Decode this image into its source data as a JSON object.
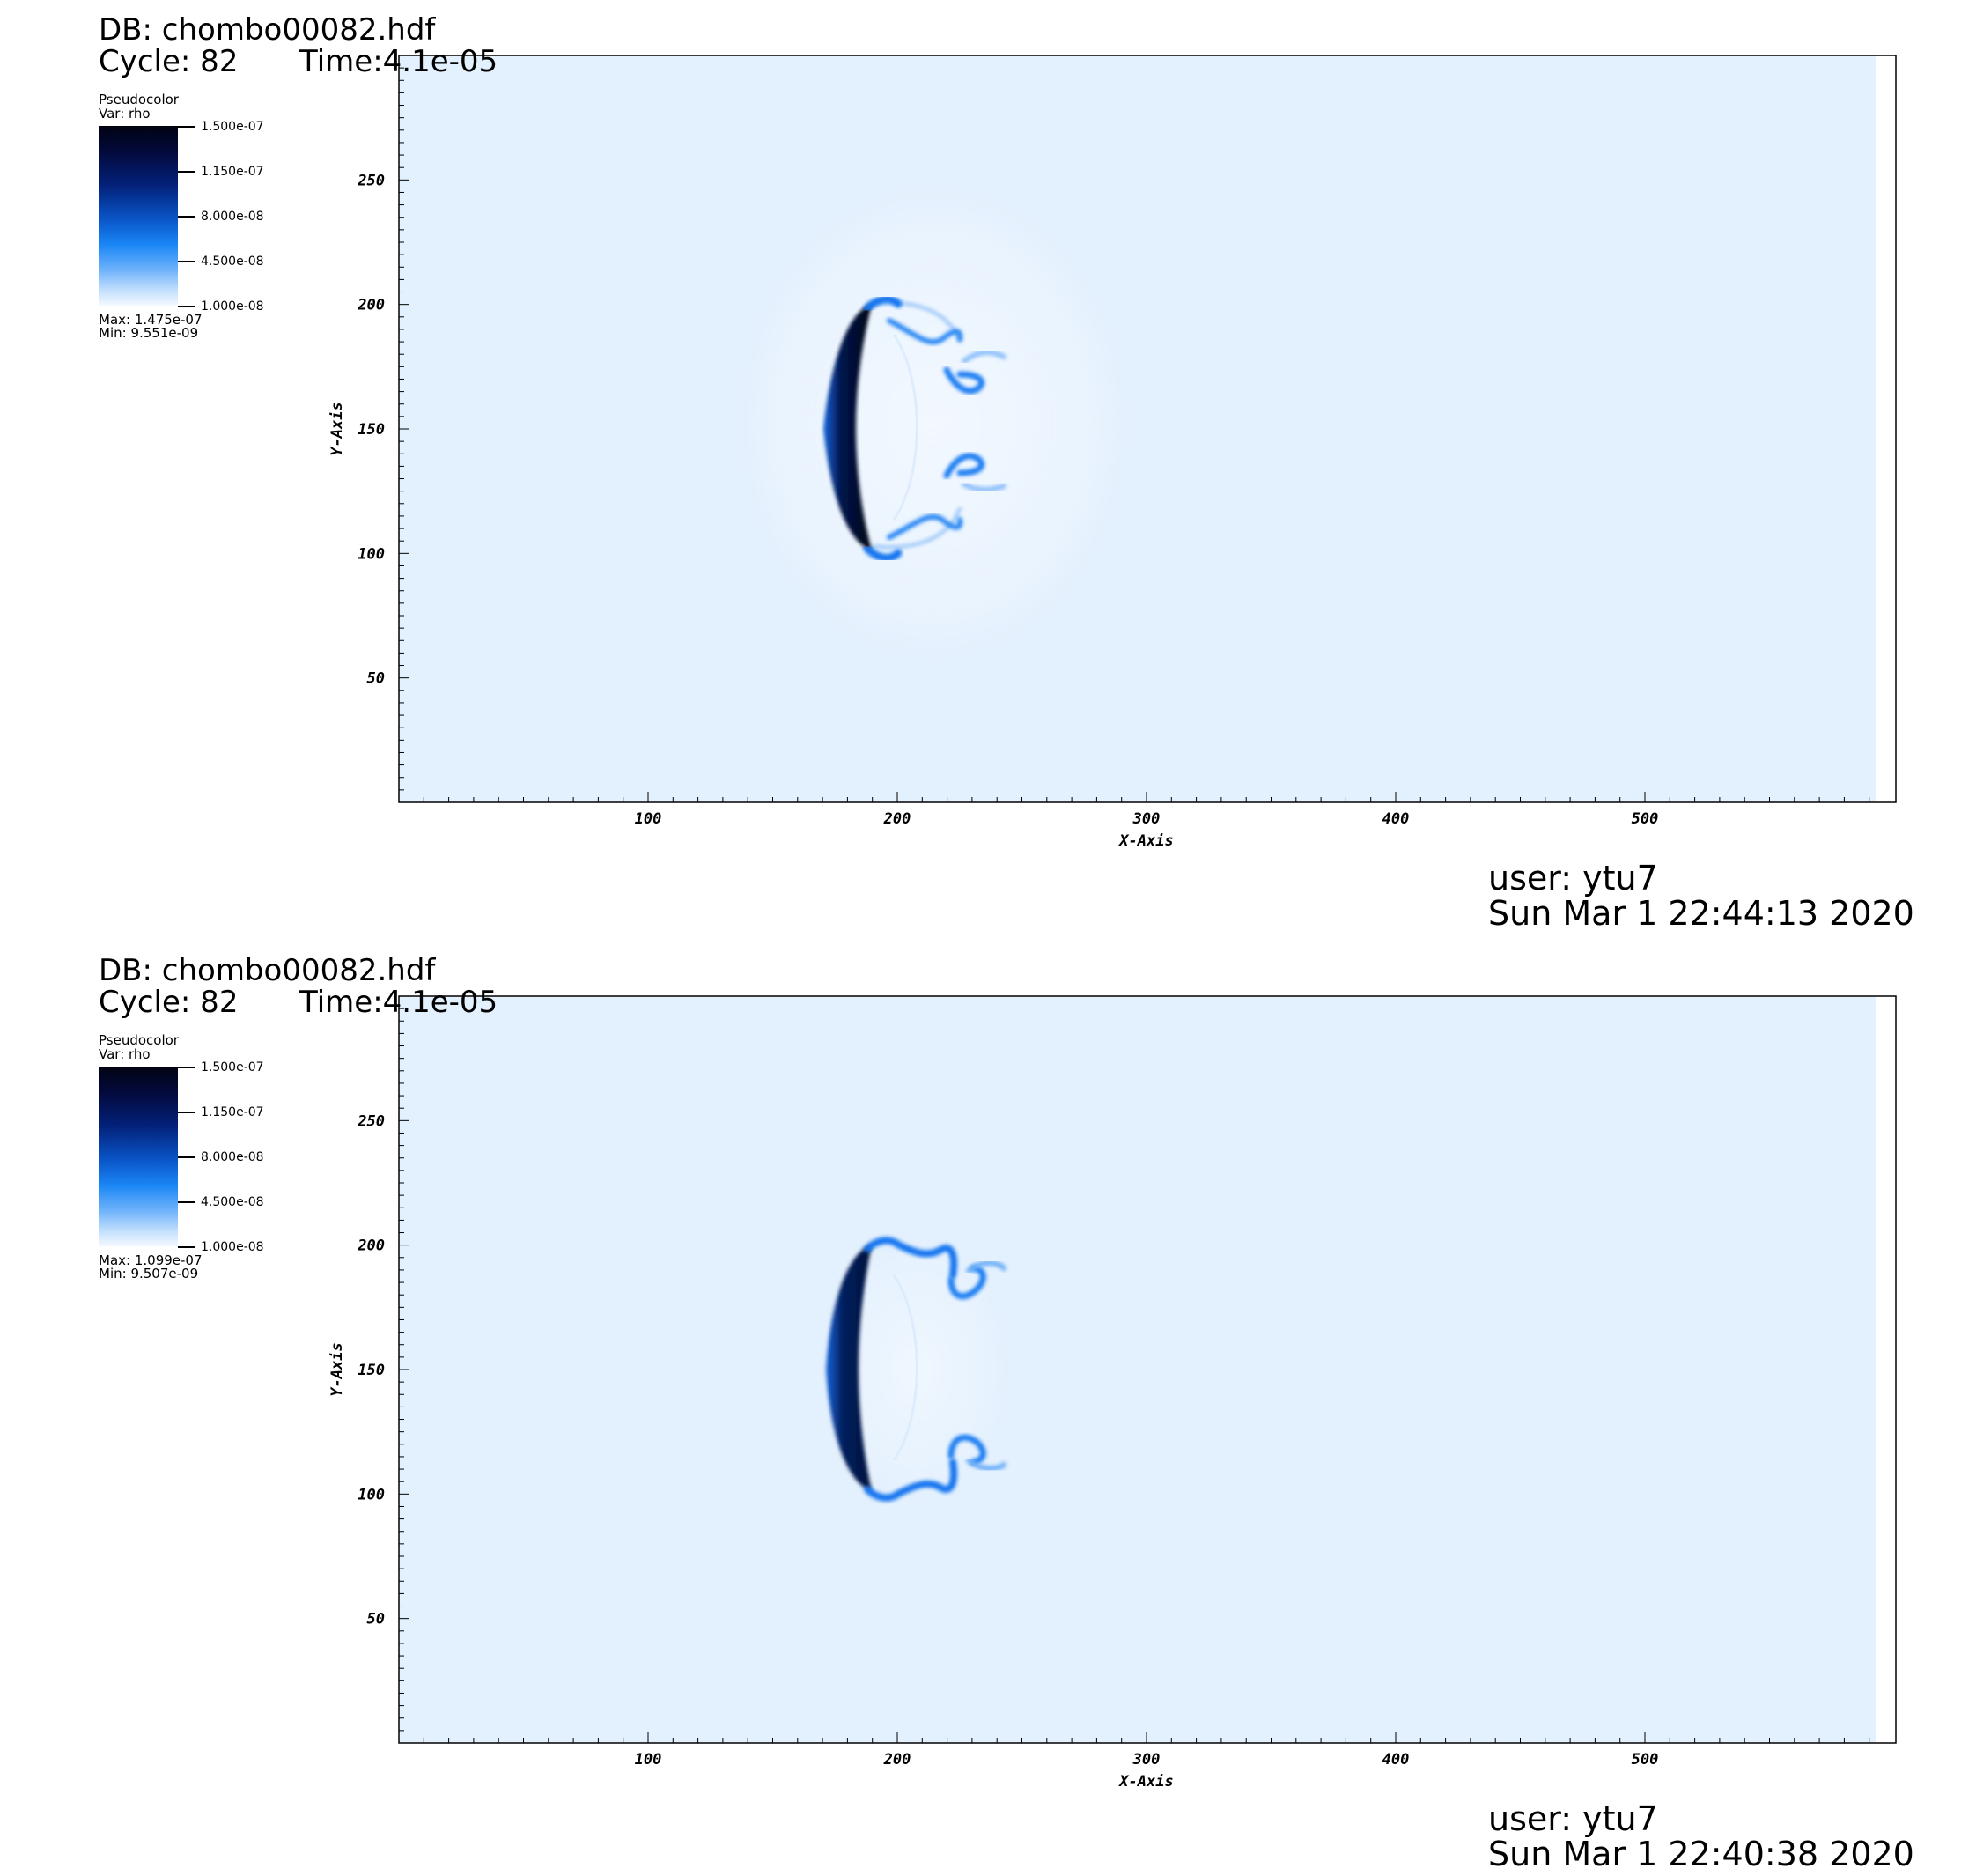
{
  "panels": [
    {
      "header": {
        "db": "DB: chombo00082.hdf",
        "cycle": "Cycle: 82",
        "time": "Time:4.1e-05"
      },
      "legend": {
        "title": "Pseudocolor",
        "var": "Var: rho",
        "ticks": [
          "1.500e-07",
          "1.150e-07",
          "8.000e-08",
          "4.500e-08",
          "1.000e-08"
        ],
        "max": "Max:  1.475e-07",
        "min": "Min:  9.551e-09"
      },
      "footer": {
        "user": "user: ytu7",
        "date": "Sun Mar  1 22:44:13 2020"
      }
    },
    {
      "header": {
        "db": "DB: chombo00082.hdf",
        "cycle": "Cycle: 82",
        "time": "Time:4.1e-05"
      },
      "legend": {
        "title": "Pseudocolor",
        "var": "Var: rho",
        "ticks": [
          "1.500e-07",
          "1.150e-07",
          "8.000e-08",
          "4.500e-08",
          "1.000e-08"
        ],
        "max": "Max:  1.099e-07",
        "min": "Min:  9.507e-09"
      },
      "footer": {
        "user": "user: ytu7",
        "date": "Sun Mar  1 22:40:38 2020"
      }
    }
  ],
  "chart_data": [
    {
      "type": "heatmap",
      "variable": "rho",
      "xlabel": "X-Axis",
      "ylabel": "Y-Axis",
      "xlim": [
        0,
        600
      ],
      "ylim": [
        0,
        300
      ],
      "xticks": [
        100,
        200,
        300,
        400,
        500
      ],
      "yticks": [
        50,
        100,
        150,
        200,
        250
      ],
      "colorbar_range": [
        1e-08,
        1.5e-07
      ],
      "colormap": [
        "#f4f9ff",
        "#6db2fb",
        "#1a86f5",
        "#0a55c8",
        "#03217a",
        "#020312"
      ],
      "background_color": "#e3f0fd",
      "data_max": 1.475e-07,
      "data_min": 9.551e-09,
      "feature": "bow shock front near x≈170–200, y≈100–200 with vortex rolls extending to x≈250"
    },
    {
      "type": "heatmap",
      "variable": "rho",
      "xlabel": "X-Axis",
      "ylabel": "Y-Axis",
      "xlim": [
        0,
        600
      ],
      "ylim": [
        0,
        300
      ],
      "xticks": [
        100,
        200,
        300,
        400,
        500
      ],
      "yticks": [
        50,
        100,
        150,
        200,
        250
      ],
      "colorbar_range": [
        1e-08,
        1.5e-07
      ],
      "colormap": [
        "#f4f9ff",
        "#6db2fb",
        "#1a86f5",
        "#0a55c8",
        "#03217a",
        "#020312"
      ],
      "background_color": "#e3f0fd",
      "data_max": 1.099e-07,
      "data_min": 9.507e-09,
      "feature": "bow shock front near x≈170–200, y≈100–200 with vortex rolls extending to x≈245"
    }
  ]
}
